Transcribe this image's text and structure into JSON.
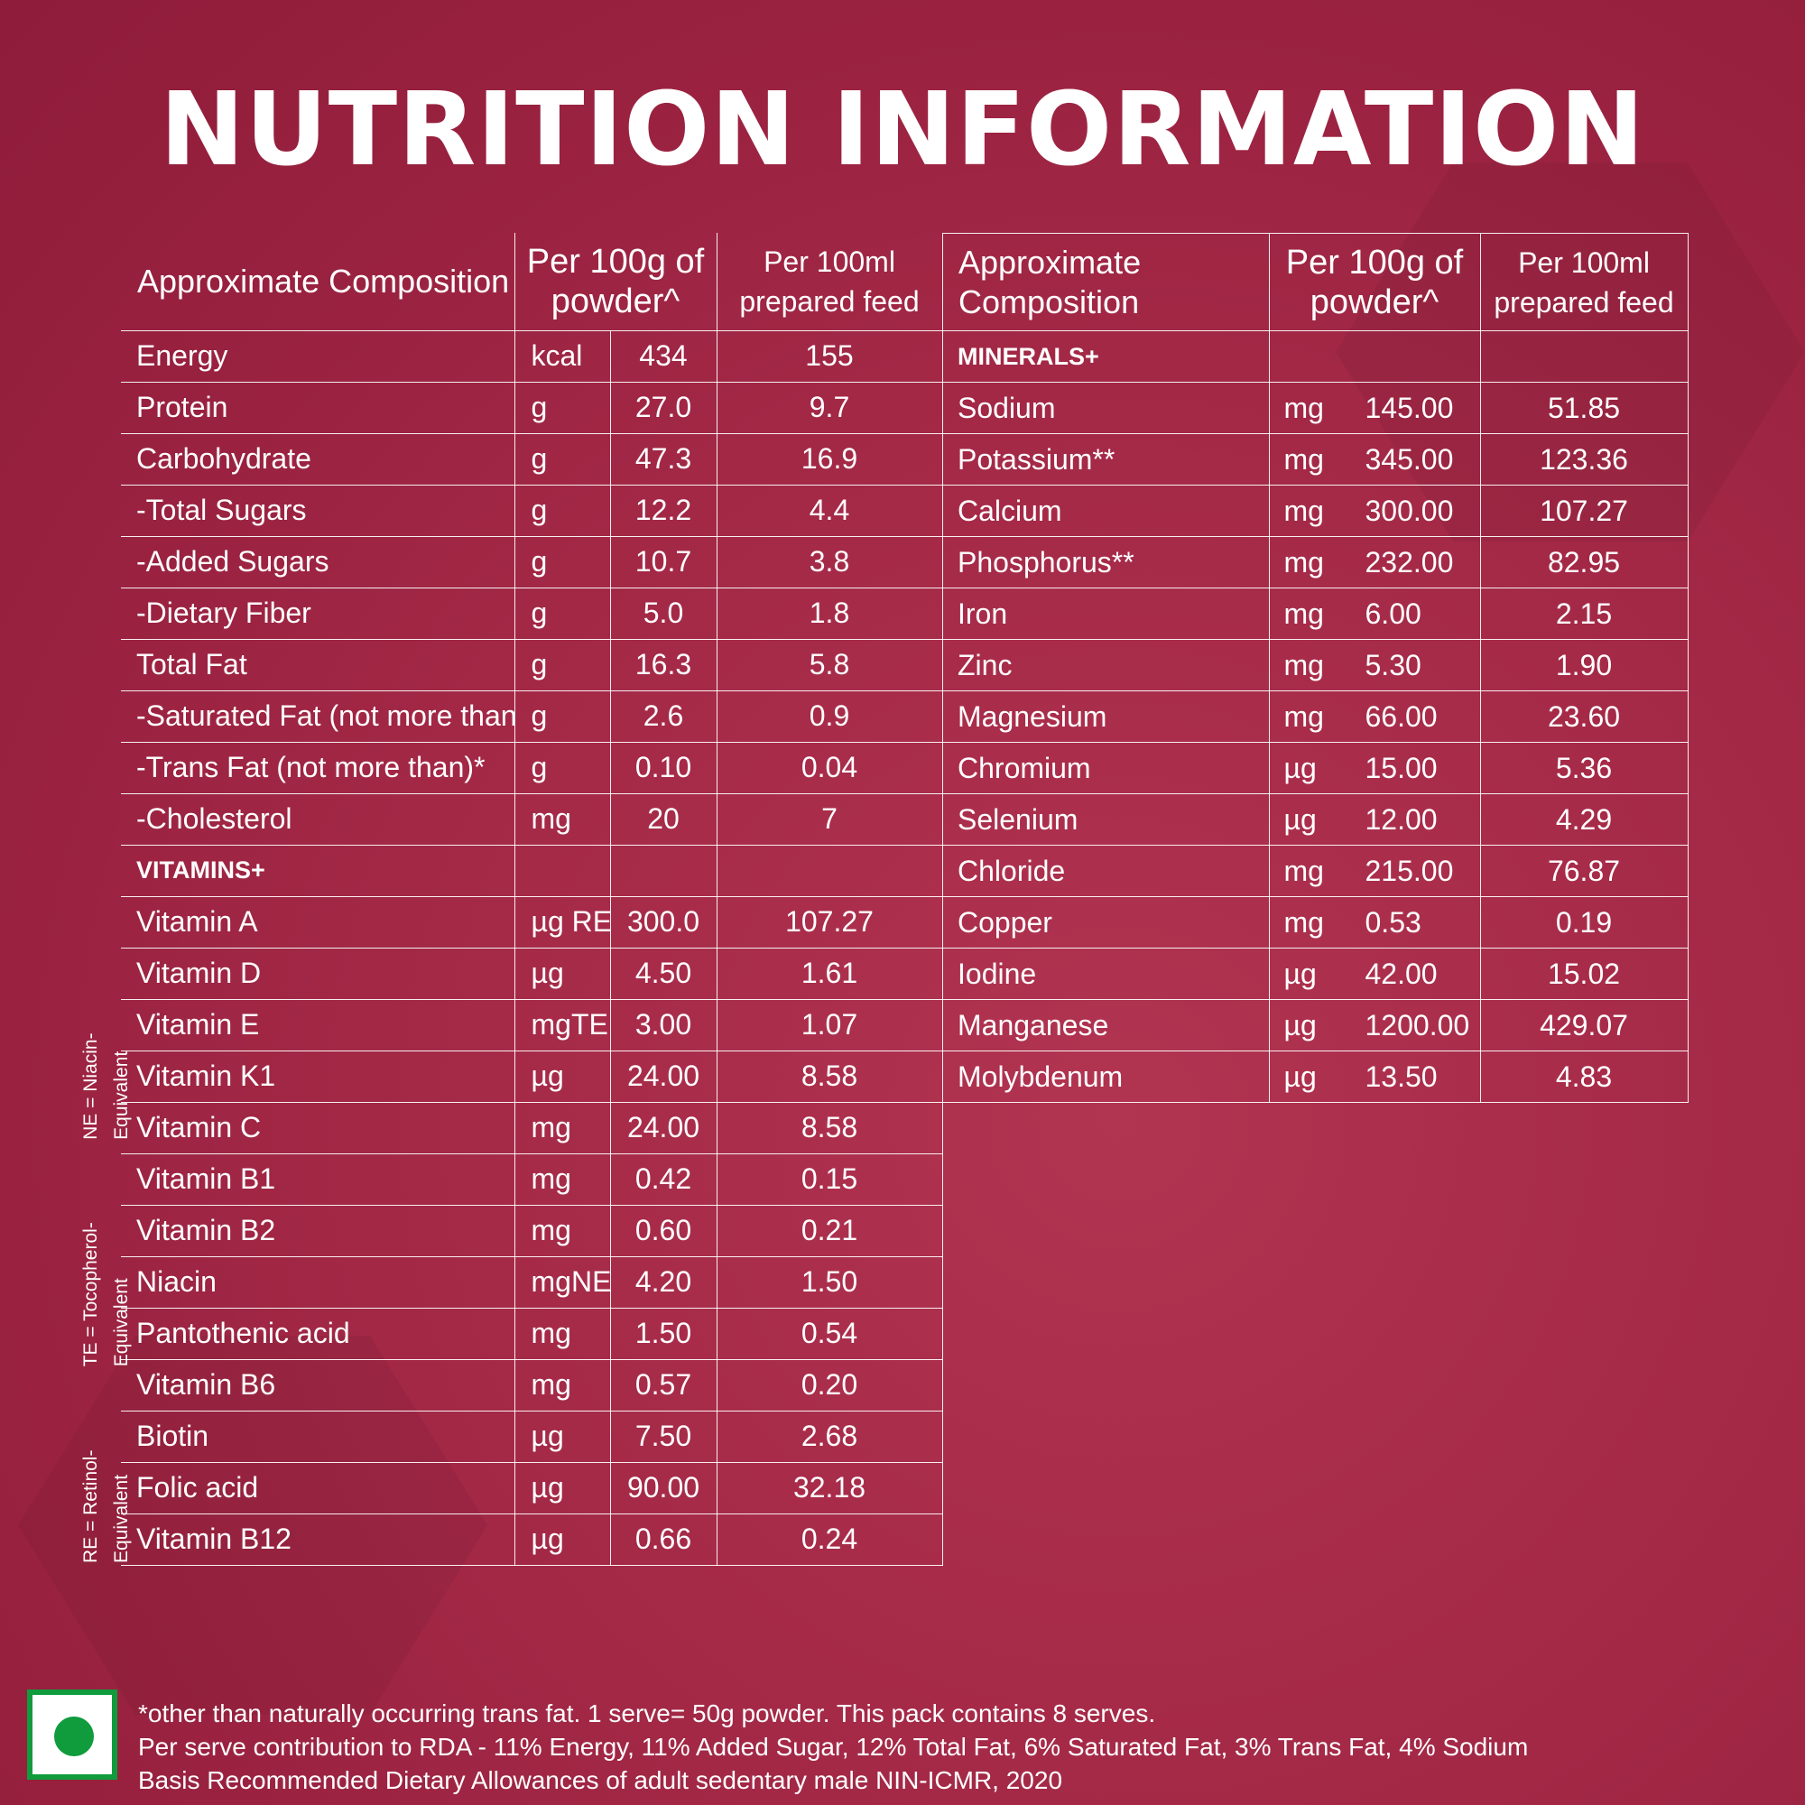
{
  "title": "NUTRITION INFORMATION",
  "headers": {
    "composition": "Approximate Composition",
    "per100g": "Per 100g of powder^",
    "per100ml": "Per 100ml prepared feed"
  },
  "left_rows": [
    {
      "name": "Energy",
      "unit": "kcal",
      "per_100g": "434",
      "per_100ml": "155"
    },
    {
      "name": "Protein",
      "unit": "g",
      "per_100g": "27.0",
      "per_100ml": "9.7"
    },
    {
      "name": "Carbohydrate",
      "unit": "g",
      "per_100g": "47.3",
      "per_100ml": "16.9"
    },
    {
      "name": "-Total Sugars",
      "unit": "g",
      "per_100g": "12.2",
      "per_100ml": "4.4"
    },
    {
      "name": "-Added Sugars",
      "unit": "g",
      "per_100g": "10.7",
      "per_100ml": "3.8"
    },
    {
      "name": "-Dietary Fiber",
      "unit": "g",
      "per_100g": "5.0",
      "per_100ml": "1.8"
    },
    {
      "name": "Total Fat",
      "unit": "g",
      "per_100g": "16.3",
      "per_100ml": "5.8"
    },
    {
      "name": "-Saturated Fat (not more than)",
      "unit": "g",
      "per_100g": "2.6",
      "per_100ml": "0.9"
    },
    {
      "name": "-Trans Fat (not more than)*",
      "unit": "g",
      "per_100g": "0.10",
      "per_100ml": "0.04"
    },
    {
      "name": "-Cholesterol",
      "unit": "mg",
      "per_100g": "20",
      "per_100ml": "7"
    },
    {
      "name": "VITAMINS+",
      "unit": "",
      "per_100g": "",
      "per_100ml": ""
    },
    {
      "name": "Vitamin A",
      "unit": "µg RE",
      "per_100g": "300.0",
      "per_100ml": "107.27"
    },
    {
      "name": "Vitamin D",
      "unit": "µg",
      "per_100g": "4.50",
      "per_100ml": "1.61"
    },
    {
      "name": "Vitamin E",
      "unit": "mgTE",
      "per_100g": "3.00",
      "per_100ml": "1.07"
    },
    {
      "name": "Vitamin K1",
      "unit": "µg",
      "per_100g": "24.00",
      "per_100ml": "8.58"
    },
    {
      "name": "Vitamin C",
      "unit": "mg",
      "per_100g": "24.00",
      "per_100ml": "8.58"
    },
    {
      "name": "Vitamin B1",
      "unit": "mg",
      "per_100g": "0.42",
      "per_100ml": "0.15"
    },
    {
      "name": "Vitamin B2",
      "unit": "mg",
      "per_100g": "0.60",
      "per_100ml": "0.21"
    },
    {
      "name": "Niacin",
      "unit": "mgNE",
      "per_100g": "4.20",
      "per_100ml": "1.50"
    },
    {
      "name": "Pantothenic acid",
      "unit": "mg",
      "per_100g": "1.50",
      "per_100ml": "0.54"
    },
    {
      "name": "Vitamin B6",
      "unit": "mg",
      "per_100g": "0.57",
      "per_100ml": "0.20"
    },
    {
      "name": "Biotin",
      "unit": "µg",
      "per_100g": "7.50",
      "per_100ml": "2.68"
    },
    {
      "name": "Folic acid",
      "unit": "µg",
      "per_100g": "90.00",
      "per_100ml": "32.18"
    },
    {
      "name": "Vitamin B12",
      "unit": "µg",
      "per_100g": "0.66",
      "per_100ml": "0.24"
    }
  ],
  "right_rows": [
    {
      "name": "MINERALS+",
      "unit": "",
      "per_100g": "",
      "per_100ml": ""
    },
    {
      "name": "Sodium",
      "unit": "mg",
      "per_100g": "145.00",
      "per_100ml": "51.85"
    },
    {
      "name": "Potassium**",
      "unit": "mg",
      "per_100g": "345.00",
      "per_100ml": "123.36"
    },
    {
      "name": "Calcium",
      "unit": "mg",
      "per_100g": "300.00",
      "per_100ml": "107.27"
    },
    {
      "name": "Phosphorus**",
      "unit": "mg",
      "per_100g": "232.00",
      "per_100ml": "82.95"
    },
    {
      "name": "Iron",
      "unit": "mg",
      "per_100g": "6.00",
      "per_100ml": "2.15"
    },
    {
      "name": "Zinc",
      "unit": "mg",
      "per_100g": "5.30",
      "per_100ml": "1.90"
    },
    {
      "name": "Magnesium",
      "unit": "mg",
      "per_100g": "66.00",
      "per_100ml": "23.60"
    },
    {
      "name": "Chromium",
      "unit": "µg",
      "per_100g": "15.00",
      "per_100ml": "5.36"
    },
    {
      "name": "Selenium",
      "unit": "µg",
      "per_100g": "12.00",
      "per_100ml": "4.29"
    },
    {
      "name": "Chloride",
      "unit": "mg",
      "per_100g": "215.00",
      "per_100ml": "76.87"
    },
    {
      "name": "Copper",
      "unit": "mg",
      "per_100g": "0.53",
      "per_100ml": "0.19"
    },
    {
      "name": "Iodine",
      "unit": "µg",
      "per_100g": "42.00",
      "per_100ml": "15.02"
    },
    {
      "name": "Manganese",
      "unit": "µg",
      "per_100g": "1200.00",
      "per_100ml": "429.07"
    },
    {
      "name": "Molybdenum",
      "unit": "µg",
      "per_100g": "13.50",
      "per_100ml": "4.83"
    }
  ],
  "side_notes": [
    "RE = Retinol-Equivalent",
    "TE = Tocopherol-Equivalent",
    "NE = Niacin-Equivalent"
  ],
  "footnotes": [
    "*other than naturally occurring trans fat. 1 serve= 50g powder. This pack contains 8 serves.",
    "Per serve contribution to RDA - 11% Energy, 11% Added Sugar, 12% Total Fat, 6% Saturated Fat, 3% Trans Fat, 4% Sodium",
    "Basis Recommended Dietary Allowances of adult sedentary male NIN-ICMR, 2020"
  ],
  "colors": {
    "background": "#a52a48",
    "text": "#ffffff",
    "veg_mark": "#109b3c"
  },
  "icons": {
    "veg_symbol": "veg-mark-icon"
  }
}
